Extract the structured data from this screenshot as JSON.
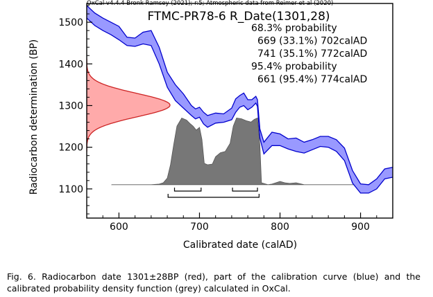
{
  "header": {
    "credit": "OxCal v4.4.4 Bronk Ramsey (2021); r:5; Atmospheric data from Reimer et al (2020)"
  },
  "caption": "Fig. 6. Radiocarbon date 1301±28BP (red), part of the calibration curve (blue) and the calibrated probability density function (grey) calculated in OxCal.",
  "colors": {
    "calibration_band": "#9999ff",
    "calibration_edge": "#0000cc",
    "date_fill": "#ffaaaa",
    "date_edge": "#cc2222",
    "pdf_fill": "#777777"
  },
  "chart_data": {
    "type": "area",
    "title": "FTMC-PR78-6 R_Date(1301,28)",
    "xlabel": "Calibrated date (calAD)",
    "ylabel": "Radiocarbon determination (BP)",
    "xlim": [
      560,
      940
    ],
    "ylim": [
      1030,
      1545
    ],
    "xticks": [
      600,
      700,
      800,
      900
    ],
    "yticks": [
      1100,
      1200,
      1300,
      1400,
      1500
    ],
    "grid": false,
    "annotations": [
      {
        "text": "68.3% probability",
        "indent": false
      },
      {
        "text": "669 (33.1%) 702calAD",
        "indent": true
      },
      {
        "text": "741 (35.1%) 772calAD",
        "indent": true
      },
      {
        "text": "95.4% probability",
        "indent": false
      },
      {
        "text": "661 (95.4%) 774calAD",
        "indent": true
      }
    ],
    "radiocarbon_date": {
      "mean": 1301,
      "sigma": 28,
      "unit": "BP"
    },
    "calibration_curve": {
      "x": [
        560,
        570,
        580,
        590,
        600,
        610,
        620,
        630,
        640,
        650,
        660,
        670,
        680,
        690,
        695,
        700,
        705,
        710,
        720,
        730,
        740,
        745,
        750,
        755,
        760,
        765,
        770,
        772,
        775,
        780,
        790,
        800,
        810,
        820,
        830,
        840,
        850,
        860,
        870,
        880,
        890,
        900,
        910,
        920,
        930,
        940
      ],
      "upper": [
        1540,
        1522,
        1510,
        1500,
        1490,
        1464,
        1462,
        1476,
        1480,
        1440,
        1380,
        1350,
        1328,
        1300,
        1292,
        1296,
        1284,
        1276,
        1282,
        1280,
        1294,
        1316,
        1324,
        1330,
        1314,
        1314,
        1322,
        1314,
        1244,
        1212,
        1236,
        1232,
        1220,
        1222,
        1212,
        1218,
        1226,
        1226,
        1218,
        1198,
        1144,
        1112,
        1110,
        1124,
        1148,
        1152
      ],
      "lower": [
        1510,
        1492,
        1480,
        1470,
        1458,
        1444,
        1442,
        1448,
        1444,
        1400,
        1344,
        1312,
        1294,
        1276,
        1268,
        1272,
        1256,
        1248,
        1258,
        1260,
        1266,
        1284,
        1296,
        1300,
        1290,
        1296,
        1306,
        1298,
        1222,
        1184,
        1204,
        1204,
        1196,
        1190,
        1186,
        1194,
        1202,
        1200,
        1190,
        1168,
        1114,
        1090,
        1090,
        1100,
        1124,
        1128
      ]
    },
    "calibrated_pdf": {
      "baseline_bp": 1110,
      "peak_height_bp": 160,
      "x": [
        591,
        640,
        650,
        655,
        660,
        664,
        668,
        672,
        678,
        684,
        688,
        692,
        696,
        700,
        703,
        706,
        710,
        716,
        720,
        726,
        732,
        738,
        742,
        746,
        752,
        758,
        764,
        768,
        772,
        775,
        777,
        785,
        790,
        800,
        806,
        812,
        820,
        830,
        900,
        910
      ],
      "density": [
        0.0,
        0.0,
        0.01,
        0.03,
        0.1,
        0.3,
        0.6,
        0.88,
        1.0,
        0.97,
        0.92,
        0.88,
        0.82,
        0.86,
        0.68,
        0.32,
        0.3,
        0.31,
        0.42,
        0.48,
        0.5,
        0.62,
        0.88,
        1.0,
        0.99,
        0.96,
        0.94,
        0.98,
        1.0,
        0.6,
        0.03,
        0.0,
        0.01,
        0.05,
        0.03,
        0.02,
        0.03,
        0.0,
        0.0,
        0.0
      ]
    },
    "ranges_68": [
      [
        669,
        702
      ],
      [
        741,
        772
      ]
    ],
    "ranges_95": [
      [
        661,
        774
      ]
    ]
  }
}
